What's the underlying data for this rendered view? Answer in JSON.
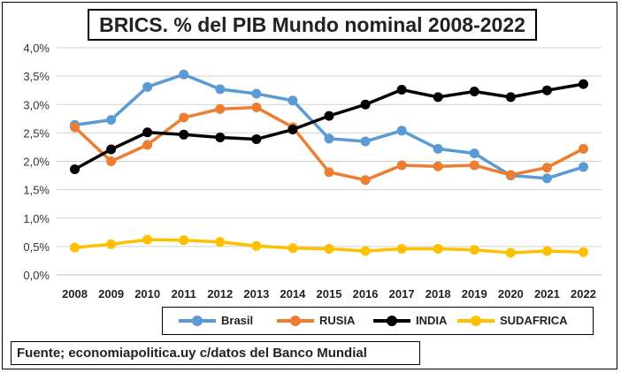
{
  "header": {
    "title": "BRICS. % del PIB Mundo nominal 2008-2022"
  },
  "footer": {
    "source": "Fuente; economiapolitica.uy c/datos del Banco Mundial"
  },
  "chart_data": {
    "type": "line",
    "title": "BRICS. % del PIB Mundo nominal 2008-2022",
    "xlabel": "",
    "ylabel": "",
    "x": [
      "2008",
      "2009",
      "2010",
      "2011",
      "2012",
      "2013",
      "2014",
      "2015",
      "2016",
      "2017",
      "2018",
      "2019",
      "2020",
      "2021",
      "2022"
    ],
    "ylim": [
      0,
      4
    ],
    "yticks": [
      "0,0%",
      "0,5%",
      "1,0%",
      "1,5%",
      "2,0%",
      "2,5%",
      "3,0%",
      "3,5%",
      "4,0%"
    ],
    "ytick_values": [
      0,
      0.5,
      1.0,
      1.5,
      2.0,
      2.5,
      3.0,
      3.5,
      4.0
    ],
    "grid": true,
    "legend_position": "bottom",
    "series": [
      {
        "name": "Brasil",
        "color": "#5b9bd5",
        "values": [
          2.64,
          2.73,
          3.31,
          3.53,
          3.27,
          3.19,
          3.07,
          2.4,
          2.35,
          2.54,
          2.22,
          2.14,
          1.75,
          1.7,
          1.9
        ]
      },
      {
        "name": "RUSIA",
        "color": "#ed7d31",
        "values": [
          2.6,
          2.0,
          2.29,
          2.77,
          2.92,
          2.95,
          2.6,
          1.81,
          1.67,
          1.93,
          1.91,
          1.93,
          1.76,
          1.89,
          2.22
        ]
      },
      {
        "name": "INDIA",
        "color": "#000000",
        "values": [
          1.86,
          2.21,
          2.51,
          2.47,
          2.42,
          2.39,
          2.56,
          2.8,
          3.0,
          3.26,
          3.13,
          3.23,
          3.13,
          3.25,
          3.36
        ]
      },
      {
        "name": "SUDAFRICA",
        "color": "#ffc000",
        "values": [
          0.48,
          0.54,
          0.62,
          0.61,
          0.58,
          0.51,
          0.47,
          0.46,
          0.42,
          0.46,
          0.46,
          0.44,
          0.39,
          0.42,
          0.4
        ]
      }
    ]
  }
}
